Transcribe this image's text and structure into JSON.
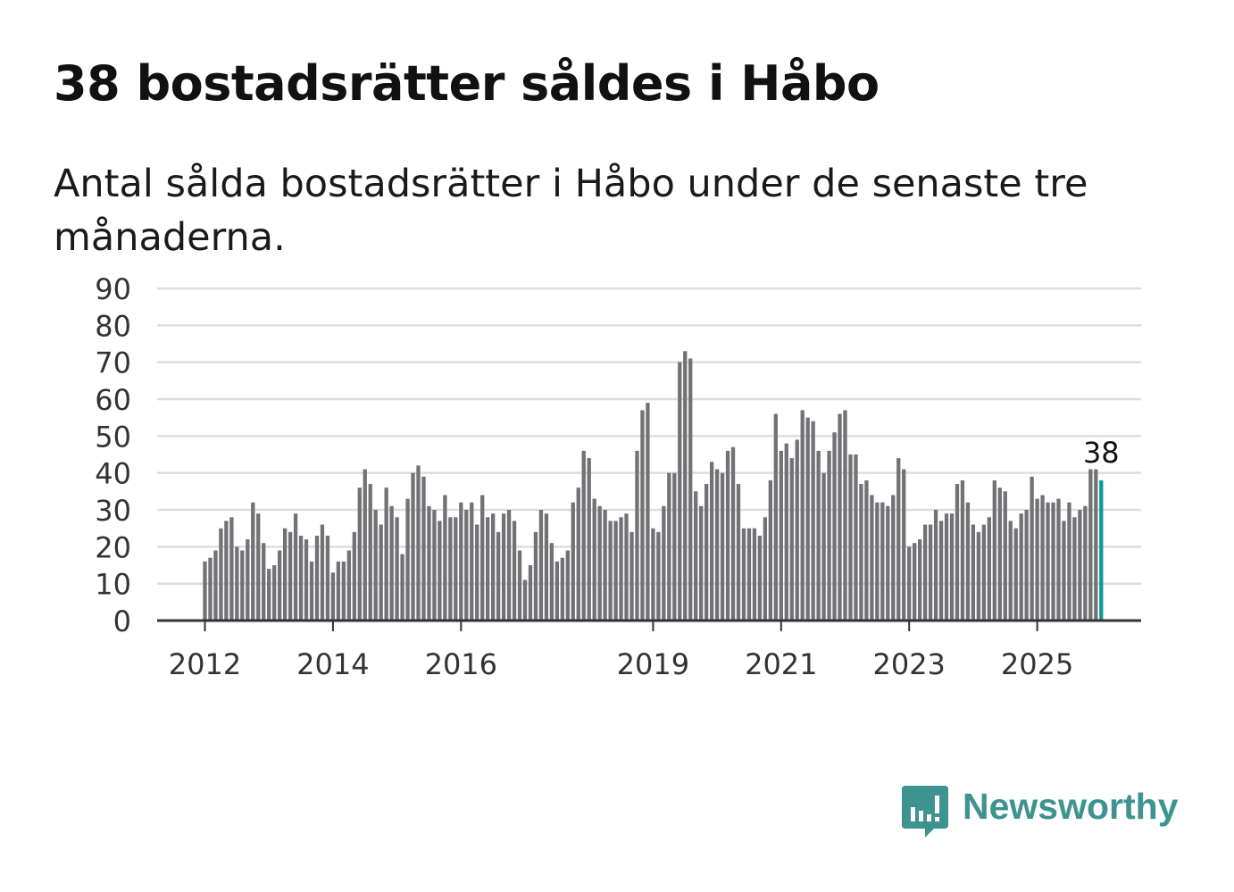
{
  "title": "38 bostadsrätter såldes i Håbo",
  "subtitle": "Antal sålda bostadsrätter i Håbo under de senaste tre månaderna.",
  "colors": {
    "bar": "#727176",
    "highlight": "#0f9a96",
    "grid": "#dddddd",
    "axis": "#333333",
    "brand": "#3d938f"
  },
  "chart_data": {
    "type": "bar",
    "title": "38 bostadsrätter såldes i Håbo",
    "xlabel": "",
    "ylabel": "",
    "ylim": [
      0,
      90
    ],
    "yticks": [
      0,
      10,
      20,
      30,
      40,
      50,
      60,
      70,
      80,
      90
    ],
    "grid": true,
    "first_period": "2012-01",
    "x_tick_labels": [
      {
        "label": "2012",
        "bar_index": 0
      },
      {
        "label": "2014",
        "bar_index": 24
      },
      {
        "label": "2016",
        "bar_index": 48
      },
      {
        "label": "2019",
        "bar_index": 84
      },
      {
        "label": "2021",
        "bar_index": 108
      },
      {
        "label": "2023",
        "bar_index": 132
      },
      {
        "label": "2025",
        "bar_index": 156
      }
    ],
    "values": [
      16,
      17,
      19,
      25,
      27,
      28,
      20,
      19,
      22,
      32,
      29,
      21,
      14,
      15,
      19,
      25,
      24,
      29,
      23,
      22,
      16,
      23,
      26,
      23,
      13,
      16,
      16,
      19,
      24,
      36,
      41,
      37,
      30,
      26,
      36,
      31,
      28,
      18,
      33,
      40,
      42,
      39,
      31,
      30,
      27,
      34,
      28,
      28,
      32,
      30,
      32,
      26,
      34,
      28,
      29,
      24,
      29,
      30,
      27,
      19,
      11,
      15,
      24,
      30,
      29,
      21,
      16,
      17,
      19,
      32,
      36,
      46,
      44,
      33,
      31,
      30,
      27,
      27,
      28,
      29,
      24,
      46,
      57,
      59,
      25,
      24,
      31,
      40,
      40,
      70,
      73,
      71,
      35,
      31,
      37,
      43,
      41,
      40,
      46,
      47,
      37,
      25,
      25,
      25,
      23,
      28,
      38,
      56,
      46,
      48,
      44,
      49,
      57,
      55,
      54,
      46,
      40,
      46,
      51,
      56,
      57,
      45,
      45,
      37,
      38,
      34,
      32,
      32,
      31,
      34,
      44,
      41,
      20,
      21,
      22,
      26,
      26,
      30,
      27,
      29,
      29,
      37,
      38,
      32,
      26,
      24,
      26,
      28,
      38,
      36,
      35,
      27,
      25,
      29,
      30,
      39,
      33,
      34,
      32,
      32,
      33,
      27,
      32,
      28,
      30,
      31,
      41,
      41,
      38
    ],
    "highlight_index": 168,
    "highlight_label": "38"
  },
  "logo": {
    "text": "Newsworthy",
    "icon": "newsworthy-chat-bars-icon"
  }
}
